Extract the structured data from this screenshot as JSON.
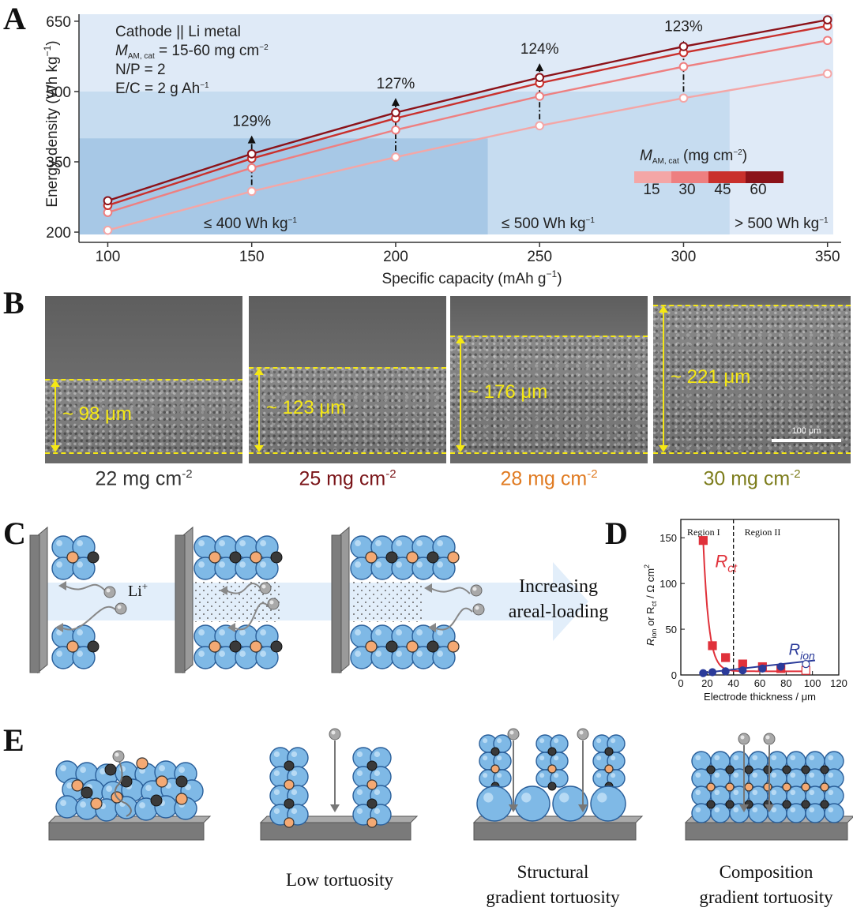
{
  "panels": {
    "a": "A",
    "b": "B",
    "c": "C",
    "d": "D",
    "e": "E"
  },
  "chart_data": [
    {
      "type": "line",
      "xlabel": "Specific capacity (mAh g",
      "xlabel_sup": "−1",
      "xlabel_end": ")",
      "ylabel": "Energy density (Wh kg",
      "ylabel_sup": "−1",
      "ylabel_end": ")",
      "x": [
        100,
        150,
        200,
        250,
        300,
        350
      ],
      "xlim": [
        90,
        352
      ],
      "ylim": [
        195,
        665
      ],
      "xticks": [
        "100",
        "150",
        "200",
        "250",
        "300",
        "350"
      ],
      "yticks": [
        200,
        350,
        500,
        650
      ],
      "series": [
        {
          "name": "15",
          "color": "#f4a6a6",
          "values": [
            204,
            287,
            360,
            427,
            486,
            538
          ]
        },
        {
          "name": "30",
          "color": "#ee7f80",
          "values": [
            242,
            337,
            418,
            490,
            553,
            609
          ]
        },
        {
          "name": "45",
          "color": "#c9302c",
          "values": [
            257,
            357,
            443,
            518,
            583,
            640
          ]
        },
        {
          "name": "60",
          "color": "#8b1219",
          "values": [
            267,
            367,
            455,
            530,
            596,
            653
          ]
        }
      ],
      "annotations": [
        {
          "x": 150,
          "text": "129%",
          "y_text": 440
        },
        {
          "x": 200,
          "text": "127%",
          "y_text": 520
        },
        {
          "x": 250,
          "text": "124%",
          "y_text": 594
        },
        {
          "x": 300,
          "text": "123%",
          "y_text": 642
        }
      ],
      "regions": [
        {
          "label": "≤ 400 Wh kg",
          "label_sup": "−1",
          "x_end": 232,
          "y_top": 400,
          "color": "#a7c8e6"
        },
        {
          "label": "≤ 500 Wh kg",
          "label_sup": "−1",
          "x_end": 316,
          "y_top": 500,
          "color": "#c6dcf0"
        },
        {
          "label": "> 500 Wh kg",
          "label_sup": "−1",
          "x_end": 352,
          "y_top": 665,
          "color": "#dfeaf7"
        }
      ],
      "info_lines": [
        "Cathode || Li metal",
        "N/P = 2",
        "E/C = 2 g Ah"
      ],
      "info_mass": {
        "prefix": "M",
        "sub": "AM, cat",
        "rest": " = 15-60 mg cm",
        "sup": "−2"
      },
      "info_ec_sup": "−1",
      "legend": {
        "prefix": "M",
        "sub": "AM, cat",
        "rest": " (mg cm",
        "sup": "−2",
        "end": ")",
        "labels": [
          "15",
          "30",
          "45",
          "60"
        ]
      }
    },
    {
      "type": "scatter",
      "xlabel": "Electrode thickness / μm",
      "ylabel_a": "R",
      "ylabel_a_sub": "ion",
      "ylabel_mid": " or R",
      "ylabel_b_sub": "ct",
      "ylabel_end": " / Ω cm",
      "ylabel_sup": "2",
      "xlim": [
        0,
        120
      ],
      "ylim": [
        0,
        170
      ],
      "xticks": [
        "0",
        "20",
        "40",
        "60",
        "80",
        "100",
        "120"
      ],
      "yticks": [
        "0",
        "50",
        "100",
        "150"
      ],
      "region_split_x": 40,
      "region_labels": [
        "Region I",
        "Region II"
      ],
      "series": [
        {
          "name": "R",
          "name_sub": "ct",
          "color": "#e0313a",
          "x": [
            17,
            24,
            34,
            47,
            62,
            76,
            95
          ],
          "y": [
            147,
            32,
            19,
            12,
            9,
            7,
            5
          ]
        },
        {
          "name": "R",
          "name_sub": "ion",
          "color": "#2b3b9a",
          "x": [
            17,
            24,
            34,
            47,
            62,
            76,
            95
          ],
          "y": [
            2,
            3,
            4,
            5,
            7,
            9,
            12
          ]
        }
      ]
    }
  ],
  "sem": [
    {
      "thickness": "~ 98 μm",
      "loading": "22 mg cm",
      "sup": "-2",
      "color": "#333333"
    },
    {
      "thickness": "~ 123 μm",
      "loading": "25 mg cm",
      "sup": "-2",
      "color": "#7a1418"
    },
    {
      "thickness": "~ 176 μm",
      "loading": "28 mg cm",
      "sup": "-2",
      "color": "#e07b22"
    },
    {
      "thickness": "~ 221 μm",
      "loading": "30 mg cm",
      "sup": "-2",
      "color": "#7d7d1c"
    }
  ],
  "scalebar": "100 μm",
  "panel_c": {
    "ion": "Li",
    "ion_sup": "+",
    "arrow_lines": [
      "Increasing",
      "areal-loading"
    ]
  },
  "panel_e": {
    "captions": [
      [
        ""
      ],
      [
        "Low tortuosity"
      ],
      [
        "Structural",
        "gradient tortuosity"
      ],
      [
        "Composition",
        "gradient tortuosity"
      ]
    ]
  }
}
